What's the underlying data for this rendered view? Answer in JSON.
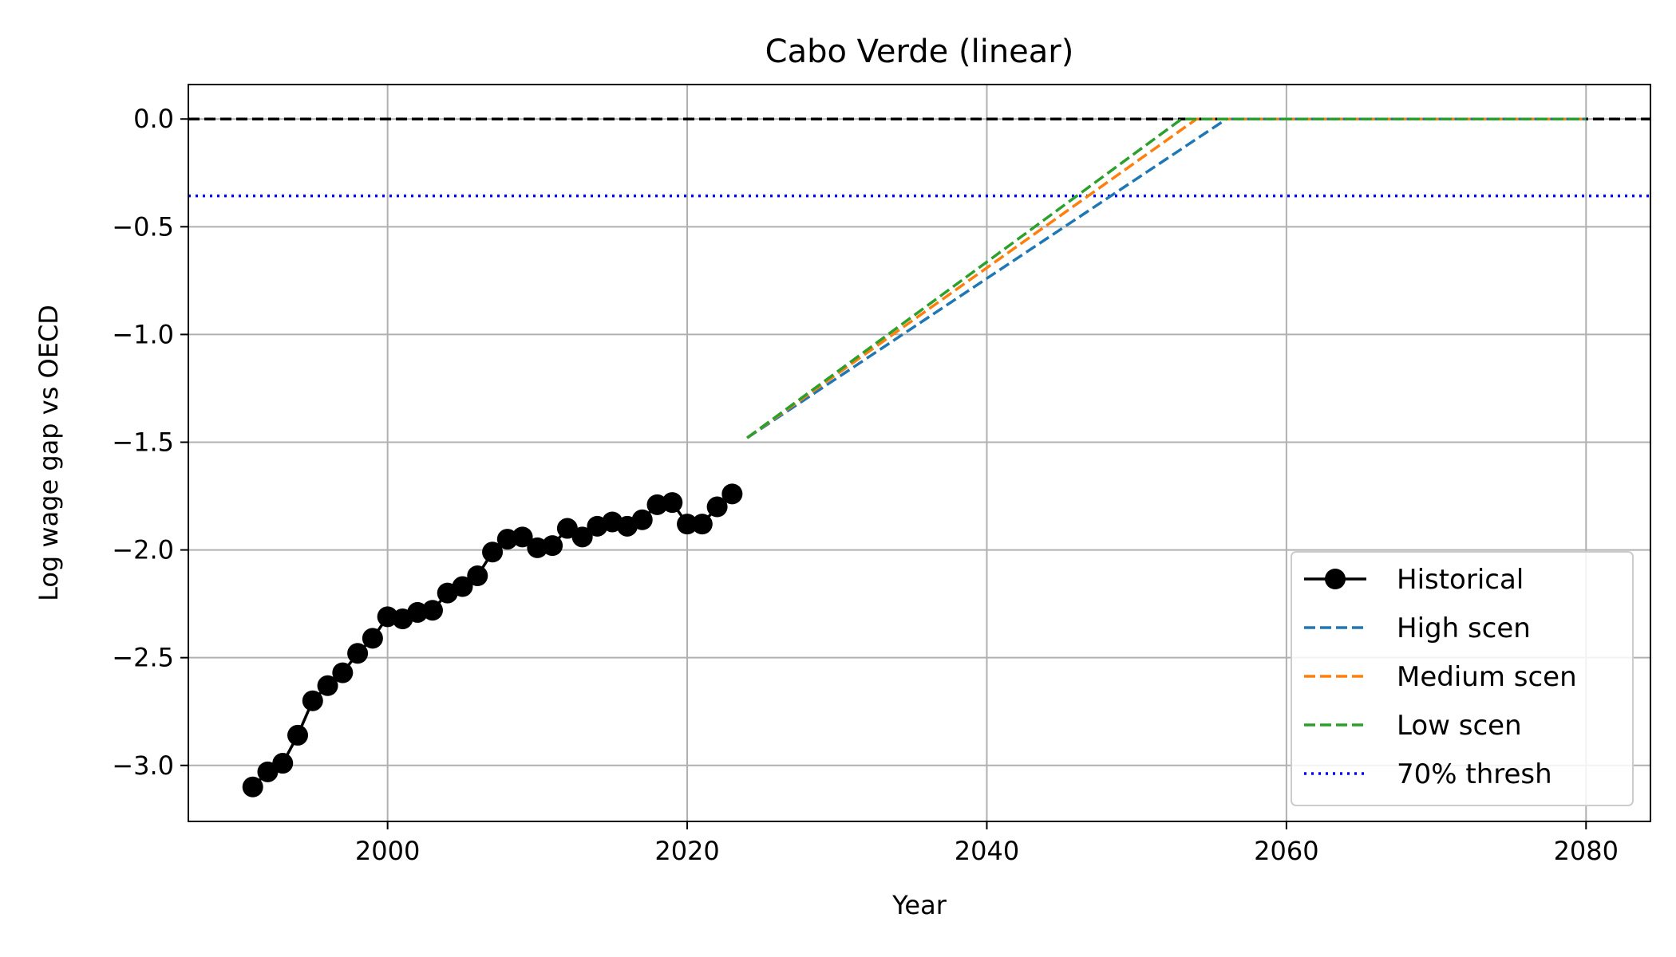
{
  "chart_data": {
    "type": "line",
    "title": "Cabo Verde (linear)",
    "xlabel": "Year",
    "ylabel": "Log wage gap vs OECD",
    "xlim": [
      1986.7,
      2084.3
    ],
    "ylim": [
      -3.26,
      0.16
    ],
    "xticks": [
      2000,
      2020,
      2040,
      2060,
      2080
    ],
    "yticks": [
      0.0,
      -0.5,
      -1.0,
      -1.5,
      -2.0,
      -2.5,
      -3.0
    ],
    "xtick_labels": [
      "2000",
      "2020",
      "2040",
      "2060",
      "2080"
    ],
    "ytick_labels": [
      "0.0",
      "−0.5",
      "−1.0",
      "−1.5",
      "−2.0",
      "−2.5",
      "−3.0"
    ],
    "grid": true,
    "legend_position": "lower-right",
    "reference_lines": [
      {
        "value": 0.0,
        "color": "#000000",
        "style": "dashed"
      },
      {
        "name": "70% thresh",
        "value": -0.357,
        "color": "#0000ff",
        "style": "dotted"
      }
    ],
    "series": [
      {
        "name": "Historical",
        "color": "#000000",
        "style": "solid-marker",
        "x": [
          1991,
          1992,
          1993,
          1994,
          1995,
          1996,
          1997,
          1998,
          1999,
          2000,
          2001,
          2002,
          2003,
          2004,
          2005,
          2006,
          2007,
          2008,
          2009,
          2010,
          2011,
          2012,
          2013,
          2014,
          2015,
          2016,
          2017,
          2018,
          2019,
          2020,
          2021,
          2022,
          2023
        ],
        "y": [
          -3.1,
          -3.03,
          -2.99,
          -2.86,
          -2.7,
          -2.63,
          -2.57,
          -2.48,
          -2.41,
          -2.31,
          -2.32,
          -2.29,
          -2.28,
          -2.2,
          -2.17,
          -2.12,
          -2.01,
          -1.95,
          -1.94,
          -1.99,
          -1.98,
          -1.9,
          -1.94,
          -1.89,
          -1.87,
          -1.89,
          -1.86,
          -1.79,
          -1.78,
          -1.88,
          -1.88,
          -1.8,
          -1.74
        ]
      },
      {
        "name": "High scen",
        "color": "#1f77b4",
        "style": "dashed",
        "x": [
          2024,
          2056,
          2080
        ],
        "y": [
          -1.48,
          0.0,
          0.0
        ]
      },
      {
        "name": "Medium scen",
        "color": "#ff7f0e",
        "style": "dashed",
        "x": [
          2024,
          2054,
          2080
        ],
        "y": [
          -1.48,
          0.0,
          0.0
        ]
      },
      {
        "name": "Low scen",
        "color": "#2ca02c",
        "style": "dashed",
        "x": [
          2024,
          2053,
          2080
        ],
        "y": [
          -1.48,
          0.0,
          0.0
        ]
      }
    ]
  }
}
